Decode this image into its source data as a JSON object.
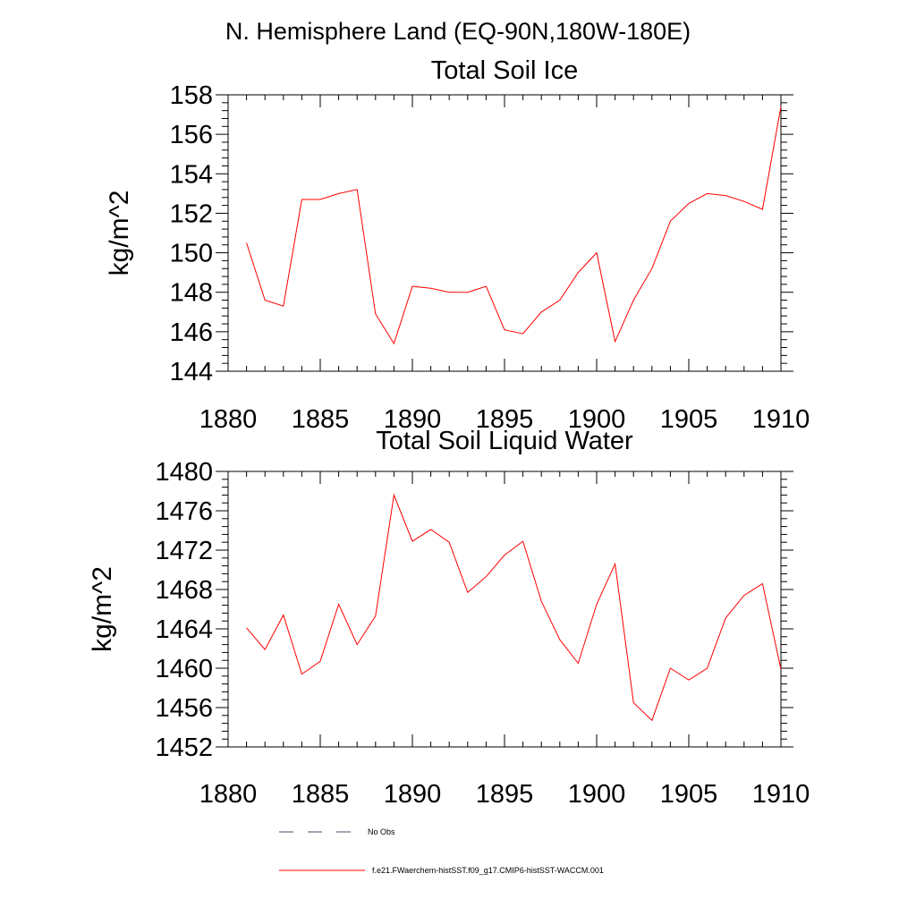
{
  "page_title": "N. Hemisphere Land (EQ-90N,180W-180E)",
  "colors": {
    "series": "#ff0000",
    "no_obs": "#4a4a6a",
    "axis": "#000000"
  },
  "legend": {
    "entries": [
      {
        "label": "No Obs",
        "style": "dashed"
      },
      {
        "label": "f.e21.FWaerchem-histSST.f09_g17.CMIP6-histSST-WACCM.001",
        "style": "solid"
      }
    ]
  },
  "chart_data": [
    {
      "type": "line",
      "title": "Total Soil Ice",
      "ylabel": "kg/m^2",
      "xlim": [
        1880,
        1910
      ],
      "ylim": [
        144,
        158
      ],
      "xticks": [
        1880,
        1885,
        1890,
        1895,
        1900,
        1905,
        1910
      ],
      "yticks": [
        144,
        146,
        148,
        150,
        152,
        154,
        156,
        158
      ],
      "series": [
        {
          "x": [
            1881,
            1882,
            1883,
            1884,
            1885,
            1886,
            1887,
            1888,
            1889,
            1890,
            1891,
            1892,
            1893,
            1894,
            1895,
            1896,
            1897,
            1898,
            1899,
            1900,
            1901,
            1902,
            1903,
            1904,
            1905,
            1906,
            1907,
            1908,
            1909,
            1910
          ],
          "values": [
            150.5,
            147.6,
            147.3,
            152.7,
            152.7,
            153.0,
            153.2,
            146.9,
            145.4,
            148.3,
            148.2,
            148.0,
            148.0,
            148.3,
            146.1,
            145.9,
            147.0,
            147.6,
            149.0,
            150.0,
            145.5,
            147.6,
            149.2,
            151.6,
            152.5,
            153.0,
            152.9,
            152.6,
            152.2,
            157.4
          ]
        }
      ]
    },
    {
      "type": "line",
      "title": "Total Soil Liquid Water",
      "ylabel": "kg/m^2",
      "xlim": [
        1880,
        1910
      ],
      "ylim": [
        1452,
        1480
      ],
      "xticks": [
        1880,
        1885,
        1890,
        1895,
        1900,
        1905,
        1910
      ],
      "yticks": [
        1452,
        1456,
        1460,
        1464,
        1468,
        1472,
        1476,
        1480
      ],
      "series": [
        {
          "x": [
            1881,
            1882,
            1883,
            1884,
            1885,
            1886,
            1887,
            1888,
            1889,
            1890,
            1891,
            1892,
            1893,
            1894,
            1895,
            1896,
            1897,
            1898,
            1899,
            1900,
            1901,
            1902,
            1903,
            1904,
            1905,
            1906,
            1907,
            1908,
            1909,
            1910
          ],
          "values": [
            1464.1,
            1461.9,
            1465.4,
            1459.4,
            1460.7,
            1466.5,
            1462.4,
            1465.3,
            1477.6,
            1472.9,
            1474.1,
            1472.8,
            1467.7,
            1469.3,
            1471.5,
            1472.9,
            1466.8,
            1462.9,
            1460.5,
            1466.5,
            1470.6,
            1456.5,
            1454.7,
            1460.0,
            1458.8,
            1460.0,
            1465.1,
            1467.4,
            1468.6,
            1459.9
          ]
        }
      ]
    }
  ]
}
